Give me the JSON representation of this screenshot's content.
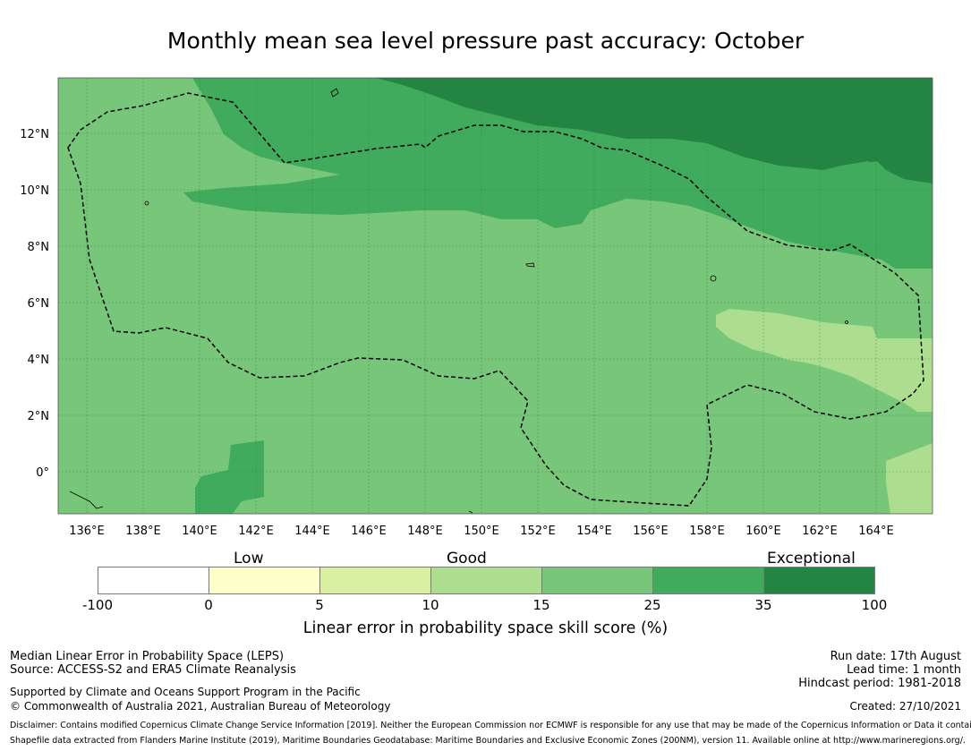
{
  "title": "Monthly mean sea level pressure past accuracy: October",
  "map": {
    "lon_labels": [
      "136°E",
      "138°E",
      "140°E",
      "142°E",
      "144°E",
      "146°E",
      "148°E",
      "150°E",
      "152°E",
      "154°E",
      "156°E",
      "158°E",
      "160°E",
      "162°E",
      "164°E"
    ],
    "lat_labels": [
      "12°N",
      "10°N",
      "8°N",
      "6°N",
      "4°N",
      "2°N",
      "0°"
    ]
  },
  "colorbar": {
    "categories": {
      "low": "Low",
      "good": "Good",
      "exceptional": "Exceptional"
    },
    "ticks": [
      "-100",
      "0",
      "5",
      "10",
      "15",
      "25",
      "35",
      "100"
    ],
    "colors": [
      "#ffffff",
      "#ffffcc",
      "#d9f0a3",
      "#addd8e",
      "#78c679",
      "#41ab5d",
      "#238443"
    ],
    "label": "Linear error in probability space skill score (%)"
  },
  "footer": {
    "left": {
      "line1": "Median Linear Error in Probability Space (LEPS)",
      "line2": "Source: ACCESS-S2 and ERA5 Climate Reanalysis",
      "line3": "Supported by Climate and Oceans Support Program in the Pacific",
      "line4": "© Commonwealth of Australia 2021, Australian Bureau of Meteorology"
    },
    "right": {
      "run_date": "Run date: 17th August",
      "lead_time": "Lead time: 1 month",
      "hindcast": "Hindcast period: 1981-2018",
      "created": "Created: 27/10/2021"
    },
    "disclaimer": "Disclaimer: Contains modified Copernicus Climate Change Service Information [2019]. Neither the European Commission nor ECMWF is responsible for any use that may be made of the Copernicus Information or Data it contains.",
    "shapefile": "Shapefile data extracted from Flanders Marine Institute (2019), Maritime Boundaries Geodatabase: Maritime Boundaries and Exclusive Economic Zones (200NM), version 11. Available online at http://www.marineregions.org/."
  }
}
